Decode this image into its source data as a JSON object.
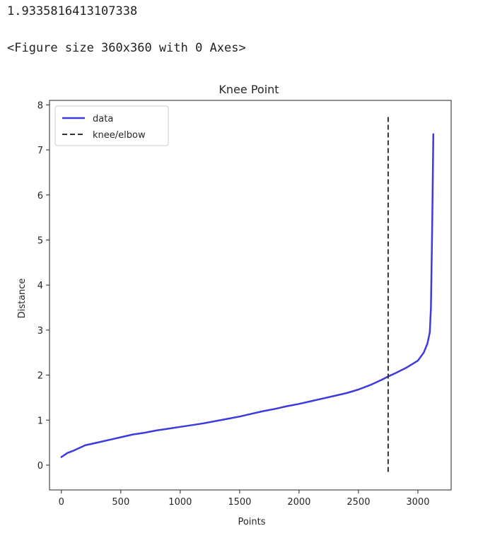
{
  "output": {
    "result_value": "1.9335816413107338",
    "figure_repr": "<Figure size 360x360 with 0 Axes>"
  },
  "chart_data": {
    "type": "line",
    "title": "Knee Point",
    "xlabel": "Points",
    "ylabel": "Distance",
    "xlim": [
      -100,
      3280
    ],
    "ylim": [
      -0.55,
      8.1
    ],
    "xticks": [
      0,
      500,
      1000,
      1500,
      2000,
      2500,
      3000
    ],
    "yticks": [
      0,
      1,
      2,
      3,
      4,
      5,
      6,
      7,
      8
    ],
    "legend_position": "upper-left",
    "grid": false,
    "series": [
      {
        "name": "data",
        "color": "#3b3bde",
        "style": "solid",
        "x": [
          0,
          50,
          100,
          200,
          300,
          400,
          500,
          600,
          700,
          800,
          900,
          1000,
          1100,
          1200,
          1300,
          1400,
          1500,
          1600,
          1700,
          1800,
          1900,
          2000,
          2100,
          2200,
          2300,
          2400,
          2500,
          2600,
          2700,
          2750,
          2800,
          2900,
          3000,
          3050,
          3080,
          3100,
          3110,
          3120,
          3130
        ],
        "y": [
          0.18,
          0.27,
          0.32,
          0.44,
          0.5,
          0.56,
          0.62,
          0.68,
          0.72,
          0.77,
          0.81,
          0.85,
          0.89,
          0.93,
          0.98,
          1.03,
          1.08,
          1.14,
          1.2,
          1.25,
          1.31,
          1.36,
          1.42,
          1.48,
          1.54,
          1.6,
          1.68,
          1.78,
          1.9,
          1.97,
          2.03,
          2.16,
          2.32,
          2.5,
          2.7,
          2.95,
          3.5,
          5.2,
          7.35
        ]
      },
      {
        "name": "knee/elbow",
        "color": "#333333",
        "style": "dashed",
        "x": [
          2750,
          2750
        ],
        "y": [
          -0.15,
          7.75
        ]
      }
    ]
  }
}
